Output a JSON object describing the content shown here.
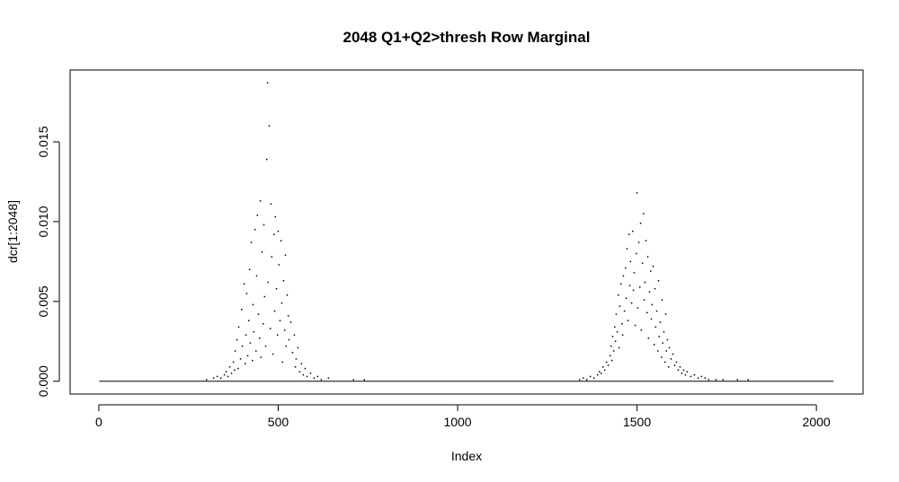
{
  "chart_data": {
    "type": "scatter",
    "title": "2048 Q1+Q2>thresh Row Marginal",
    "xlabel": "Index",
    "ylabel": "dcr[1:2048]",
    "xlim": [
      -80,
      2130
    ],
    "ylim": [
      -0.0008,
      0.0195
    ],
    "xticks": [
      0,
      500,
      1000,
      1500,
      2000
    ],
    "xtick_labels": [
      "0",
      "500",
      "1000",
      "1500",
      "2000"
    ],
    "yticks": [
      0.0,
      0.005,
      0.01,
      0.015
    ],
    "ytick_labels": [
      "0.000",
      "0.005",
      "0.010",
      "0.015"
    ],
    "grid": false,
    "legend": "none",
    "marker_color": "#000000",
    "series": [
      {
        "distribution": "two peaks of sparse points near Index 470 and Index 1510; all other points at 0",
        "x": [
          300,
          320,
          330,
          340,
          350,
          355,
          360,
          365,
          370,
          375,
          378,
          380,
          385,
          388,
          390,
          395,
          398,
          400,
          405,
          408,
          410,
          412,
          415,
          418,
          420,
          422,
          425,
          428,
          430,
          432,
          435,
          438,
          440,
          442,
          445,
          448,
          450,
          452,
          455,
          458,
          460,
          462,
          465,
          468,
          470,
          472,
          475,
          478,
          480,
          482,
          485,
          488,
          490,
          492,
          495,
          498,
          500,
          502,
          505,
          508,
          510,
          512,
          515,
          518,
          520,
          522,
          525,
          528,
          530,
          535,
          540,
          545,
          548,
          550,
          555,
          560,
          565,
          570,
          575,
          580,
          590,
          600,
          610,
          620,
          640,
          710,
          740,
          1340,
          1350,
          1360,
          1370,
          1380,
          1390,
          1395,
          1400,
          1405,
          1410,
          1415,
          1420,
          1425,
          1428,
          1430,
          1432,
          1435,
          1438,
          1440,
          1442,
          1445,
          1448,
          1450,
          1452,
          1455,
          1458,
          1460,
          1462,
          1465,
          1468,
          1470,
          1472,
          1475,
          1478,
          1480,
          1482,
          1485,
          1488,
          1490,
          1492,
          1495,
          1498,
          1500,
          1502,
          1505,
          1508,
          1510,
          1512,
          1515,
          1518,
          1520,
          1522,
          1525,
          1528,
          1530,
          1532,
          1535,
          1538,
          1540,
          1542,
          1545,
          1548,
          1550,
          1552,
          1555,
          1558,
          1560,
          1562,
          1565,
          1568,
          1570,
          1572,
          1575,
          1578,
          1580,
          1582,
          1585,
          1588,
          1590,
          1595,
          1600,
          1605,
          1610,
          1615,
          1620,
          1625,
          1630,
          1635,
          1640,
          1650,
          1660,
          1670,
          1680,
          1690,
          1700,
          1720,
          1740,
          1780,
          1810
        ],
        "y": [
          0.0001,
          0.0002,
          0.0003,
          0.0002,
          0.0004,
          0.0006,
          0.0003,
          0.0009,
          0.0005,
          0.0012,
          0.0007,
          0.0019,
          0.0026,
          0.0008,
          0.0034,
          0.0014,
          0.0045,
          0.0022,
          0.0061,
          0.0011,
          0.0029,
          0.0055,
          0.0016,
          0.0038,
          0.007,
          0.0024,
          0.0087,
          0.0013,
          0.0048,
          0.0031,
          0.0095,
          0.0019,
          0.0066,
          0.0104,
          0.0042,
          0.0027,
          0.0113,
          0.0015,
          0.0081,
          0.0036,
          0.0098,
          0.0053,
          0.0022,
          0.0139,
          0.0187,
          0.0062,
          0.016,
          0.0033,
          0.0111,
          0.0078,
          0.0017,
          0.0092,
          0.0044,
          0.0103,
          0.0058,
          0.0029,
          0.0094,
          0.0073,
          0.0038,
          0.0088,
          0.0049,
          0.0012,
          0.0063,
          0.0032,
          0.0079,
          0.0022,
          0.0054,
          0.0041,
          0.0026,
          0.0037,
          0.0018,
          0.0029,
          0.0009,
          0.0014,
          0.0021,
          0.0006,
          0.0011,
          0.0004,
          0.0008,
          0.0003,
          0.0005,
          0.0002,
          0.0003,
          0.0001,
          0.0002,
          0.0001,
          0.0001,
          0.0001,
          0.0002,
          0.0001,
          0.0003,
          0.0002,
          0.0004,
          0.0006,
          0.0005,
          0.0009,
          0.0007,
          0.0012,
          0.001,
          0.0016,
          0.0022,
          0.0013,
          0.0028,
          0.0019,
          0.0034,
          0.0025,
          0.0042,
          0.0031,
          0.0054,
          0.0021,
          0.0047,
          0.0061,
          0.0036,
          0.0029,
          0.0066,
          0.0044,
          0.0071,
          0.0052,
          0.0083,
          0.0038,
          0.0092,
          0.006,
          0.0075,
          0.0049,
          0.0094,
          0.0057,
          0.0068,
          0.0035,
          0.008,
          0.0118,
          0.0046,
          0.0087,
          0.0059,
          0.0099,
          0.0032,
          0.0074,
          0.0105,
          0.0051,
          0.0062,
          0.0088,
          0.0043,
          0.0078,
          0.0027,
          0.0056,
          0.0069,
          0.0039,
          0.0048,
          0.0072,
          0.0023,
          0.0058,
          0.0034,
          0.0044,
          0.0019,
          0.0063,
          0.0028,
          0.0037,
          0.0015,
          0.0051,
          0.0024,
          0.0031,
          0.0012,
          0.0042,
          0.0019,
          0.0026,
          0.0009,
          0.0021,
          0.0014,
          0.0017,
          0.001,
          0.0012,
          0.0007,
          0.0009,
          0.0005,
          0.0007,
          0.0004,
          0.0006,
          0.0003,
          0.0004,
          0.0002,
          0.0003,
          0.0002,
          0.0001,
          0.0001,
          0.0001,
          0.0001,
          0.0001
        ]
      }
    ]
  }
}
